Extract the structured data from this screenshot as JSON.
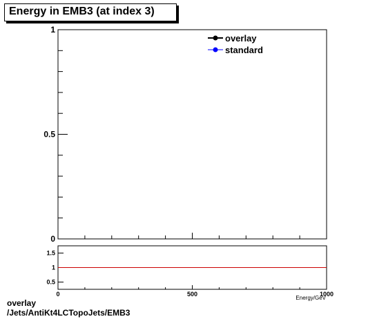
{
  "chart_data": [
    {
      "type": "line",
      "title": "Energy in EMB3 (at index 3)",
      "xlabel": "Energy/GeV",
      "ylabel": "",
      "xlim": [
        0,
        1000
      ],
      "ylim": [
        0,
        1
      ],
      "xticks": [
        "0",
        "500",
        "1000"
      ],
      "yticks": [
        "0",
        "0.5",
        "1"
      ],
      "legend_position": "top-right",
      "series": [
        {
          "name": "overlay",
          "color": "#000000",
          "marker": "circle",
          "x": [],
          "y": []
        },
        {
          "name": "standard",
          "color": "#0000ff",
          "marker": "circle",
          "x": [],
          "y": []
        }
      ]
    },
    {
      "type": "line",
      "title": "",
      "xlabel": "Energy/GeV",
      "ylabel": "",
      "xlim": [
        0,
        1000
      ],
      "ylim": [
        0.25,
        1.75
      ],
      "yticks": [
        "0.5",
        "1",
        "1.5"
      ],
      "reference_line": {
        "y": 1,
        "color": "#cc0000"
      }
    }
  ],
  "footer": {
    "line1": "overlay",
    "line2": "/Jets/AntiKt4LCTopoJets/EMB3"
  }
}
